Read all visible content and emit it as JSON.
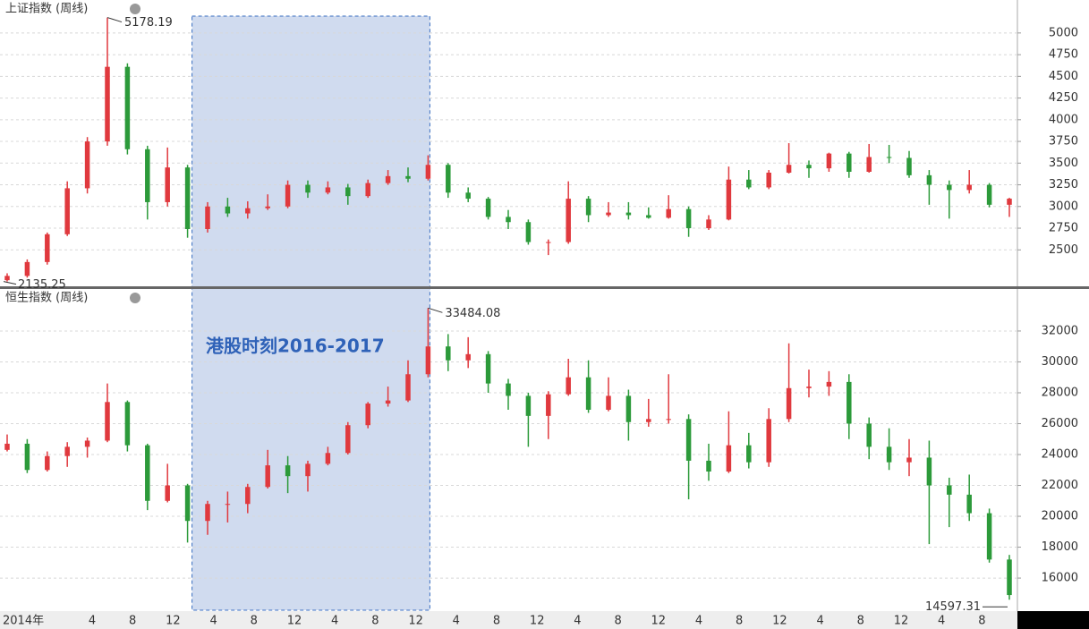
{
  "chart_data": [
    {
      "type": "candlestick",
      "title": "上证指数 (周线)",
      "up_color": "#e0393e",
      "down_color": "#2c9a3a",
      "grid": true,
      "ylim": [
        2080,
        5380
      ],
      "yticks": [
        2500,
        2750,
        3000,
        3250,
        3500,
        3750,
        4000,
        4250,
        4500,
        4750,
        5000
      ],
      "open": [
        2150,
        2200,
        2360,
        2680,
        3210,
        3750,
        4610,
        3660,
        3050,
        3450,
        2740,
        3000,
        2920,
        2980,
        3000,
        3250,
        3160,
        3220,
        3120,
        3270,
        3350,
        3320,
        3480,
        3160,
        3090,
        2880,
        2820,
        2590,
        2590,
        3090,
        2900,
        2930,
        2900,
        2870,
        2970,
        2750,
        2850,
        3310,
        3220,
        3390,
        3480,
        3440,
        3610,
        3400,
        3570,
        3560,
        3360,
        3250,
        3190,
        3250,
        3020
      ],
      "high": [
        2230,
        2390,
        2700,
        3290,
        3800,
        5178.19,
        4650,
        3700,
        3680,
        3480,
        3050,
        3100,
        3060,
        3140,
        3300,
        3300,
        3290,
        3260,
        3310,
        3420,
        3450,
        3590,
        3500,
        3220,
        3110,
        2960,
        2850,
        2620,
        3290,
        3120,
        3050,
        3050,
        2990,
        3130,
        3000,
        2900,
        3460,
        3420,
        3420,
        3730,
        3530,
        3620,
        3630,
        3720,
        3710,
        3640,
        3420,
        3300,
        3420,
        3270,
        3100
      ],
      "low": [
        2135.25,
        2180,
        2330,
        2660,
        3150,
        3700,
        3600,
        2850,
        3000,
        2640,
        2700,
        2880,
        2860,
        2960,
        2980,
        3100,
        3140,
        3020,
        3100,
        3250,
        3280,
        3300,
        3100,
        3050,
        2850,
        2740,
        2560,
        2440,
        2570,
        2820,
        2880,
        2850,
        2860,
        2860,
        2650,
        2730,
        2840,
        3200,
        3200,
        3380,
        3330,
        3400,
        3330,
        3390,
        3500,
        3330,
        3020,
        2860,
        3150,
        2990,
        2880
      ],
      "close": [
        2200,
        2360,
        2680,
        3210,
        3750,
        4610,
        3660,
        3050,
        3450,
        2740,
        3000,
        2920,
        2980,
        3000,
        3250,
        3160,
        3220,
        3120,
        3270,
        3350,
        3320,
        3480,
        3160,
        3090,
        2880,
        2820,
        2590,
        2590,
        3090,
        2900,
        2930,
        2900,
        2870,
        2970,
        2750,
        2850,
        3310,
        3220,
        3390,
        3480,
        3440,
        3610,
        3400,
        3570,
        3560,
        3360,
        3250,
        3190,
        3250,
        3020,
        3090
      ]
    },
    {
      "type": "candlestick",
      "title": "恒生指数 (周线)",
      "up_color": "#e0393e",
      "down_color": "#2c9a3a",
      "grid": true,
      "ylim": [
        13860,
        34720
      ],
      "yticks": [
        16000,
        18000,
        20000,
        22000,
        24000,
        26000,
        28000,
        30000,
        32000
      ],
      "annotation": "港股时刻2016-2017",
      "open": [
        24300,
        24700,
        23000,
        23900,
        24500,
        24900,
        27400,
        24600,
        21000,
        22000,
        19700,
        20800,
        20800,
        21900,
        23300,
        22600,
        23400,
        24100,
        25900,
        27300,
        27500,
        29200,
        31000,
        30100,
        30500,
        28600,
        27800,
        26500,
        27900,
        29000,
        26900,
        27800,
        26100,
        26300,
        26300,
        23600,
        22900,
        24600,
        23500,
        26300,
        28300,
        28400,
        28700,
        26000,
        24500,
        23500,
        23800,
        22000,
        21400,
        20200,
        17200
      ],
      "high": [
        25300,
        25000,
        24200,
        24800,
        25100,
        28600,
        27500,
        24700,
        23400,
        22100,
        21000,
        21600,
        22100,
        24300,
        23900,
        23600,
        24500,
        26100,
        27400,
        28400,
        30100,
        33484.08,
        31800,
        31600,
        30700,
        28900,
        28000,
        28100,
        30200,
        30100,
        29000,
        28200,
        27600,
        29200,
        26600,
        24700,
        26800,
        25400,
        27000,
        31200,
        29500,
        29400,
        29200,
        26400,
        25700,
        25000,
        24900,
        22500,
        22700,
        20500,
        17500
      ],
      "low": [
        24200,
        22800,
        22900,
        23200,
        23800,
        24800,
        24200,
        20400,
        20900,
        18300,
        18800,
        19600,
        20200,
        21800,
        21500,
        21600,
        23300,
        24000,
        25700,
        27100,
        27400,
        29000,
        29400,
        29600,
        28000,
        26900,
        24500,
        25000,
        27800,
        26700,
        26800,
        24900,
        25800,
        26000,
        21100,
        22300,
        22800,
        23100,
        23200,
        26100,
        27700,
        27800,
        25000,
        23700,
        23000,
        22600,
        18200,
        19300,
        19700,
        17000,
        14597.31
      ],
      "close": [
        24700,
        23000,
        23900,
        24500,
        24900,
        27400,
        24600,
        21000,
        22000,
        19700,
        20800,
        20800,
        21900,
        23300,
        22600,
        23400,
        24100,
        25900,
        27300,
        27500,
        29200,
        31000,
        30100,
        30500,
        28600,
        27800,
        26500,
        27900,
        29000,
        26900,
        27800,
        26100,
        26300,
        26300,
        23600,
        22900,
        24600,
        23500,
        26300,
        28300,
        28400,
        28700,
        26000,
        24500,
        23500,
        23800,
        22000,
        21400,
        20200,
        17200,
        14900
      ]
    }
  ],
  "x_axis": {
    "labels": [
      "2014年",
      "4",
      "8",
      "12",
      "4",
      "8",
      "12",
      "4",
      "8",
      "12",
      "4",
      "8",
      "12",
      "4",
      "8",
      "12",
      "4",
      "8",
      "12",
      "4",
      "8",
      "12",
      "4",
      "8"
    ]
  }
}
